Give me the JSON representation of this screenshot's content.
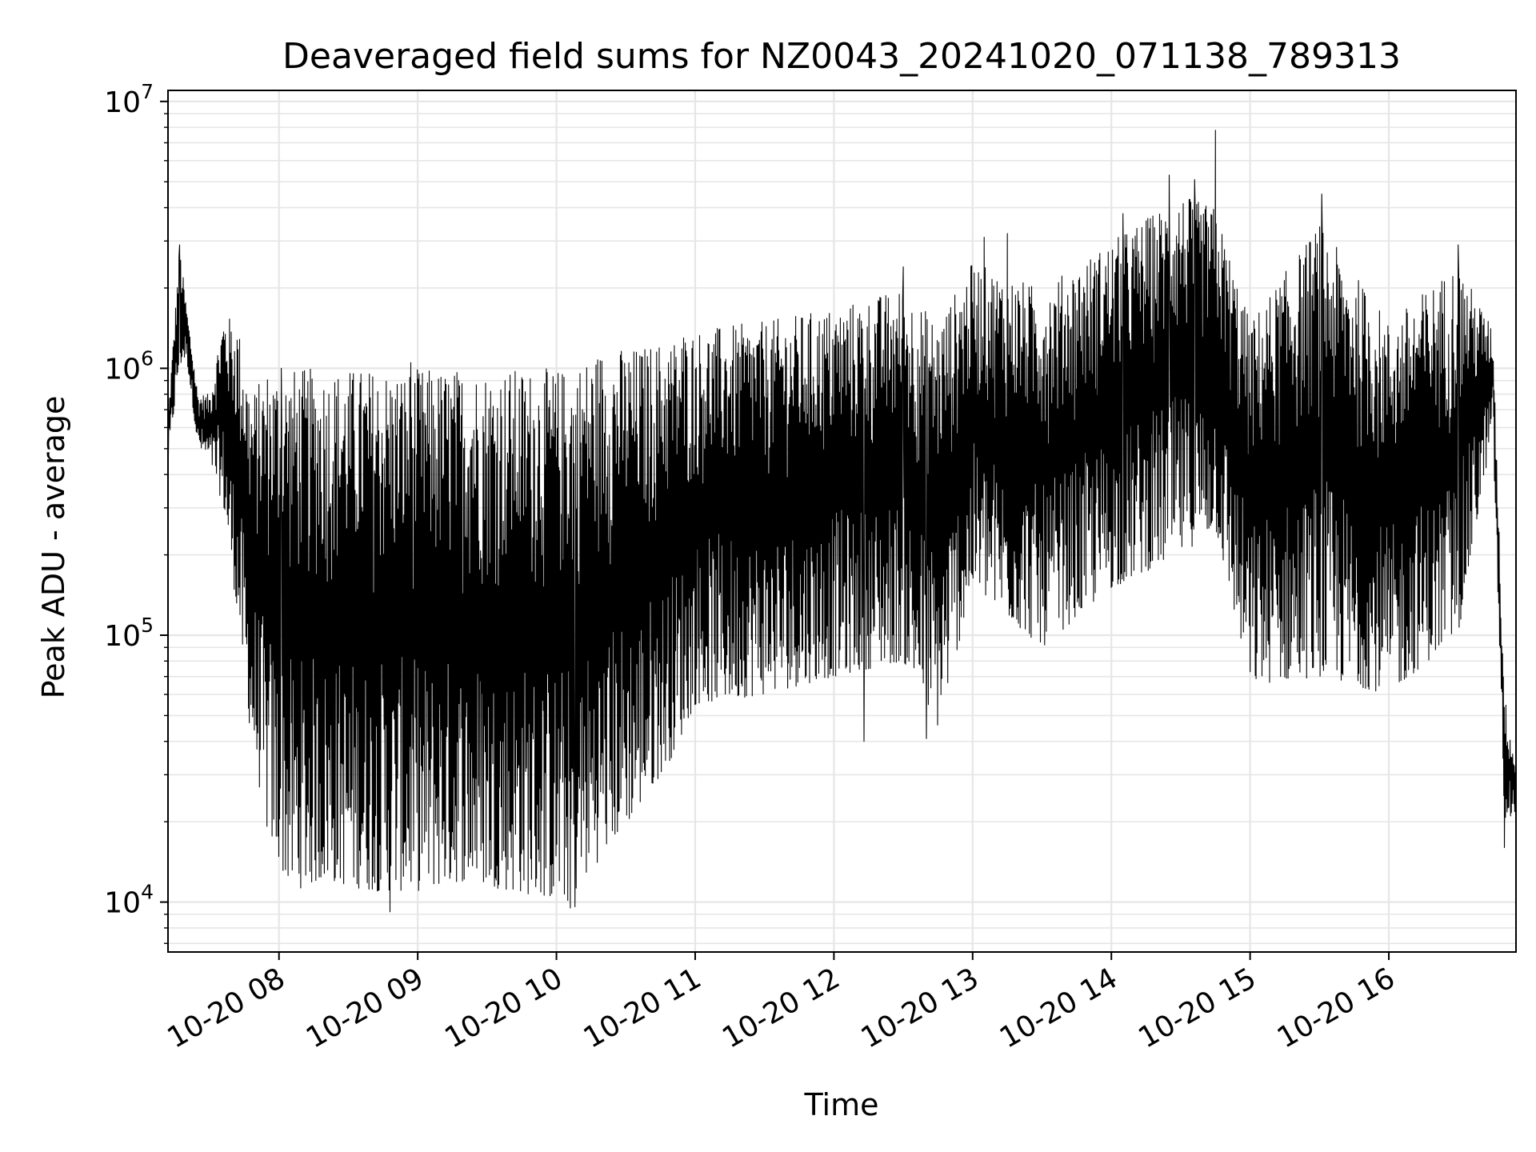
{
  "chart_data": {
    "type": "line",
    "title": "Deaveraged field sums for NZ0043_20241020_071138_789313",
    "xlabel": "Time",
    "ylabel": "Peak ADU - average",
    "yscale": "log",
    "ylim": [
      6500,
      11000000
    ],
    "xlim": [
      "2024-10-20 07:12",
      "2024-10-20 16:55"
    ],
    "grid": true,
    "line_color": "#000000",
    "grid_color": "#e6e6e6",
    "x_ticks": [
      {
        "time": "2024-10-20 08:00",
        "label": "10-20 08"
      },
      {
        "time": "2024-10-20 09:00",
        "label": "10-20 09"
      },
      {
        "time": "2024-10-20 10:00",
        "label": "10-20 10"
      },
      {
        "time": "2024-10-20 11:00",
        "label": "10-20 11"
      },
      {
        "time": "2024-10-20 12:00",
        "label": "10-20 12"
      },
      {
        "time": "2024-10-20 13:00",
        "label": "10-20 13"
      },
      {
        "time": "2024-10-20 14:00",
        "label": "10-20 14"
      },
      {
        "time": "2024-10-20 15:00",
        "label": "10-20 15"
      },
      {
        "time": "2024-10-20 16:00",
        "label": "10-20 16"
      }
    ],
    "y_ticks": [
      {
        "value": 10000,
        "base": "10",
        "exp": "4"
      },
      {
        "value": 100000,
        "base": "10",
        "exp": "5"
      },
      {
        "value": 1000000,
        "base": "10",
        "exp": "6"
      },
      {
        "value": 10000000,
        "base": "10",
        "exp": "7"
      }
    ],
    "series": [
      {
        "envelope": [
          {
            "time": "2024-10-20 07:12",
            "low": 450000,
            "high": 650000
          },
          {
            "time": "2024-10-20 07:17",
            "low": 1000000,
            "high": 2900000
          },
          {
            "time": "2024-10-20 07:20",
            "low": 1100000,
            "high": 1700000
          },
          {
            "time": "2024-10-20 07:25",
            "low": 500000,
            "high": 800000
          },
          {
            "time": "2024-10-20 07:30",
            "low": 450000,
            "high": 800000
          },
          {
            "time": "2024-10-20 07:36",
            "low": 300000,
            "high": 1600000
          },
          {
            "time": "2024-10-20 07:42",
            "low": 120000,
            "high": 1500000
          },
          {
            "time": "2024-10-20 07:48",
            "low": 40000,
            "high": 800000
          },
          {
            "time": "2024-10-20 07:55",
            "low": 18000,
            "high": 1000000
          },
          {
            "time": "2024-10-20 08:05",
            "low": 11000,
            "high": 1000000
          },
          {
            "time": "2024-10-20 08:20",
            "low": 12000,
            "high": 1000000
          },
          {
            "time": "2024-10-20 08:40",
            "low": 11000,
            "high": 1000000
          },
          {
            "time": "2024-10-20 09:00",
            "low": 11000,
            "high": 1000000
          },
          {
            "time": "2024-10-20 09:20",
            "low": 12000,
            "high": 1000000
          },
          {
            "time": "2024-10-20 09:40",
            "low": 11000,
            "high": 1000000
          },
          {
            "time": "2024-10-20 10:05",
            "low": 10000,
            "high": 1000000
          },
          {
            "time": "2024-10-20 10:20",
            "low": 15000,
            "high": 1200000
          },
          {
            "time": "2024-10-20 10:35",
            "low": 22000,
            "high": 1200000
          },
          {
            "time": "2024-10-20 10:50",
            "low": 35000,
            "high": 1300000
          },
          {
            "time": "2024-10-20 11:00",
            "low": 55000,
            "high": 1400000
          },
          {
            "time": "2024-10-20 11:30",
            "low": 60000,
            "high": 1500000
          },
          {
            "time": "2024-10-20 12:00",
            "low": 70000,
            "high": 1700000
          },
          {
            "time": "2024-10-20 12:30",
            "low": 80000,
            "high": 2000000
          },
          {
            "time": "2024-10-20 12:45",
            "low": 45000,
            "high": 1500000
          },
          {
            "time": "2024-10-20 13:00",
            "low": 150000,
            "high": 2500000
          },
          {
            "time": "2024-10-20 13:30",
            "low": 90000,
            "high": 2000000
          },
          {
            "time": "2024-10-20 14:00",
            "low": 150000,
            "high": 3000000
          },
          {
            "time": "2024-10-20 14:30",
            "low": 200000,
            "high": 4500000
          },
          {
            "time": "2024-10-20 14:45",
            "low": 250000,
            "high": 4000000
          },
          {
            "time": "2024-10-20 15:00",
            "low": 65000,
            "high": 1500000
          },
          {
            "time": "2024-10-20 15:30",
            "low": 70000,
            "high": 3500000
          },
          {
            "time": "2024-10-20 16:00",
            "low": 60000,
            "high": 1500000
          },
          {
            "time": "2024-10-20 16:30",
            "low": 100000,
            "high": 2500000
          },
          {
            "time": "2024-10-20 16:45",
            "low": 600000,
            "high": 1400000
          },
          {
            "time": "2024-10-20 16:50",
            "low": 20000,
            "high": 60000
          },
          {
            "time": "2024-10-20 16:55",
            "low": 22000,
            "high": 32000
          }
        ],
        "peaks": [
          {
            "time": "2024-10-20 07:17",
            "value": 2900000
          },
          {
            "time": "2024-10-20 08:01",
            "value": 1000000
          },
          {
            "time": "2024-10-20 08:57",
            "value": 1050000
          },
          {
            "time": "2024-10-20 10:55",
            "value": 1300000
          },
          {
            "time": "2024-10-20 12:30",
            "value": 2400000
          },
          {
            "time": "2024-10-20 13:05",
            "value": 3100000
          },
          {
            "time": "2024-10-20 13:15",
            "value": 3200000
          },
          {
            "time": "2024-10-20 14:05",
            "value": 3800000
          },
          {
            "time": "2024-10-20 14:25",
            "value": 5300000
          },
          {
            "time": "2024-10-20 14:36",
            "value": 5100000
          },
          {
            "time": "2024-10-20 14:45",
            "value": 7800000
          },
          {
            "time": "2024-10-20 15:31",
            "value": 4500000
          },
          {
            "time": "2024-10-20 16:30",
            "value": 2900000
          }
        ],
        "troughs": [
          {
            "time": "2024-10-20 08:48",
            "value": 9200
          },
          {
            "time": "2024-10-20 10:06",
            "value": 9500
          },
          {
            "time": "2024-10-20 10:08",
            "value": 9600
          },
          {
            "time": "2024-10-20 12:13",
            "value": 40000
          },
          {
            "time": "2024-10-20 12:40",
            "value": 41000
          },
          {
            "time": "2024-10-20 16:50",
            "value": 16000
          }
        ]
      }
    ]
  }
}
